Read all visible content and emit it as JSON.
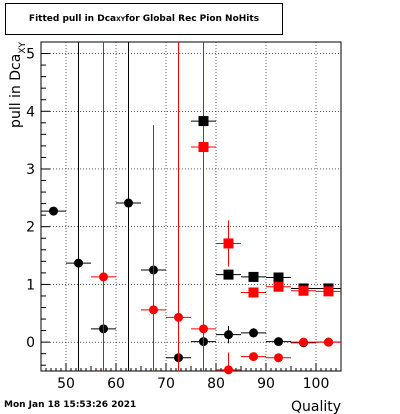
{
  "footer": {
    "timestamp": "Mon Jan 18 15:53:26 2021"
  },
  "chart_data": {
    "type": "scatter",
    "title_pre": "Fitted pull in Dca",
    "title_sub": "XY",
    "title_post": " for Global Rec Pion NoHits",
    "xlabel": "Quality",
    "ylabel_pre": "pull in Dca",
    "ylabel_sub": "XY",
    "xlim": [
      45,
      105
    ],
    "ylim": [
      -0.5,
      5.2
    ],
    "xticks": [
      50,
      60,
      70,
      80,
      90,
      100
    ],
    "yticks": [
      0,
      1,
      2,
      3,
      4,
      5
    ],
    "grid": true,
    "series": [
      {
        "marker": "circle",
        "color": "#000000",
        "points": [
          {
            "x": 47.5,
            "y": 2.27,
            "err": 0
          },
          {
            "x": 52.5,
            "y": 1.37,
            "err": 5
          },
          {
            "x": 57.5,
            "y": 0.23,
            "err": 0.2
          },
          {
            "x": 62.5,
            "y": 2.41,
            "err": 5
          },
          {
            "x": 67.5,
            "y": 1.25,
            "err": 0.05
          },
          {
            "x": 72.5,
            "y": -0.27,
            "err": 0.05
          },
          {
            "x": 77.5,
            "y": 0.01,
            "err": 0.03
          },
          {
            "x": 82.5,
            "y": 0.13,
            "err": 0.15
          },
          {
            "x": 87.5,
            "y": 0.16,
            "err": 0.08
          },
          {
            "x": 92.5,
            "y": 0.01,
            "err": 0.03
          },
          {
            "x": 97.5,
            "y": -0.01,
            "err": 0.02
          },
          {
            "x": 102.5,
            "y": 0.0,
            "err": 0.02
          }
        ]
      },
      {
        "marker": "circle",
        "color": "#ff0000",
        "points": [
          {
            "x": 57.5,
            "y": 1.13,
            "err": 5
          },
          {
            "x": 67.5,
            "y": 0.56,
            "err": 3.2
          },
          {
            "x": 72.5,
            "y": 0.43,
            "err": 5
          },
          {
            "x": 77.5,
            "y": 0.23,
            "err": 5
          },
          {
            "x": 82.5,
            "y": -0.48,
            "err": 0.3
          },
          {
            "x": 87.5,
            "y": -0.25,
            "err": 0.07
          },
          {
            "x": 92.5,
            "y": -0.27,
            "err": 0.05
          },
          {
            "x": 97.5,
            "y": 0.0,
            "err": 0.03
          },
          {
            "x": 102.5,
            "y": 0.0,
            "err": 0.02
          }
        ]
      },
      {
        "marker": "square",
        "color": "#000000",
        "points": [
          {
            "x": 77.5,
            "y": 3.83,
            "err": 0.05
          },
          {
            "x": 82.5,
            "y": 1.17,
            "err": 0.05
          },
          {
            "x": 87.5,
            "y": 1.13,
            "err": 0.04
          },
          {
            "x": 92.5,
            "y": 1.12,
            "err": 0.03
          },
          {
            "x": 97.5,
            "y": 0.93,
            "err": 0.03
          },
          {
            "x": 102.5,
            "y": 0.93,
            "err": 0.02
          }
        ]
      },
      {
        "marker": "square",
        "color": "#ff0000",
        "points": [
          {
            "x": 77.5,
            "y": 3.38,
            "err": 0.04
          },
          {
            "x": 82.5,
            "y": 1.71,
            "err": 0.4
          },
          {
            "x": 87.5,
            "y": 0.86,
            "err": 0.04
          },
          {
            "x": 92.5,
            "y": 0.96,
            "err": 0.03
          },
          {
            "x": 97.5,
            "y": 0.89,
            "err": 0.03
          },
          {
            "x": 102.5,
            "y": 0.88,
            "err": 0.02
          }
        ]
      }
    ]
  }
}
